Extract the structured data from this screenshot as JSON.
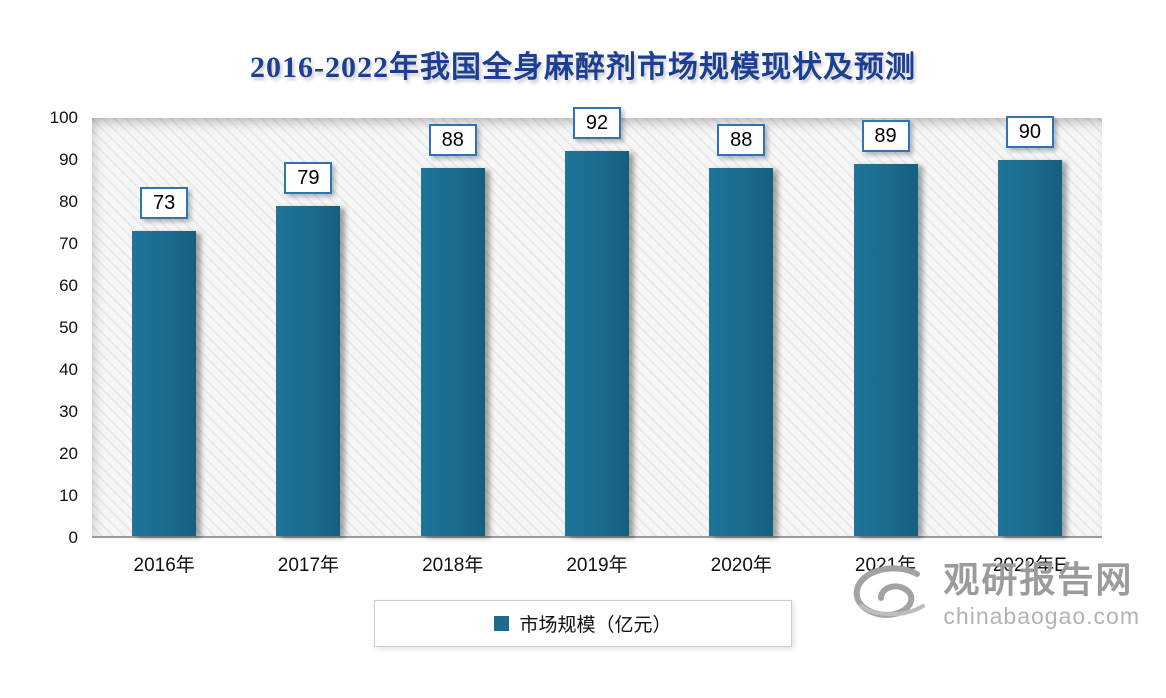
{
  "title": "2016-2022年我国全身麻醉剂市场规模现状及预测",
  "chart_data": {
    "type": "bar",
    "title": "2016-2022年我国全身麻醉剂市场规模现状及预测",
    "categories": [
      "2016年",
      "2017年",
      "2018年",
      "2019年",
      "2020年",
      "2021年",
      "2022年E"
    ],
    "values": [
      73,
      79,
      88,
      92,
      88,
      89,
      90
    ],
    "series_name": "市场规模（亿元）",
    "xlabel": "",
    "ylabel": "",
    "ylim": [
      0,
      100
    ],
    "ytick_step": 10,
    "grid": false,
    "legend_position": "bottom-center",
    "plot_background": "diagonal-hatch"
  },
  "legend": {
    "items": [
      {
        "label": "市场规模（亿元）",
        "color": "#1b6b8e"
      }
    ]
  },
  "watermark": {
    "brand": "观研报告网",
    "domain": "chinabaogao.com"
  },
  "colors": {
    "bar": "#1b6b8e",
    "title": "#1c3e94",
    "label_border": "#2e74b5",
    "watermark": "#9b9b9b",
    "axis_text": "#111111"
  }
}
